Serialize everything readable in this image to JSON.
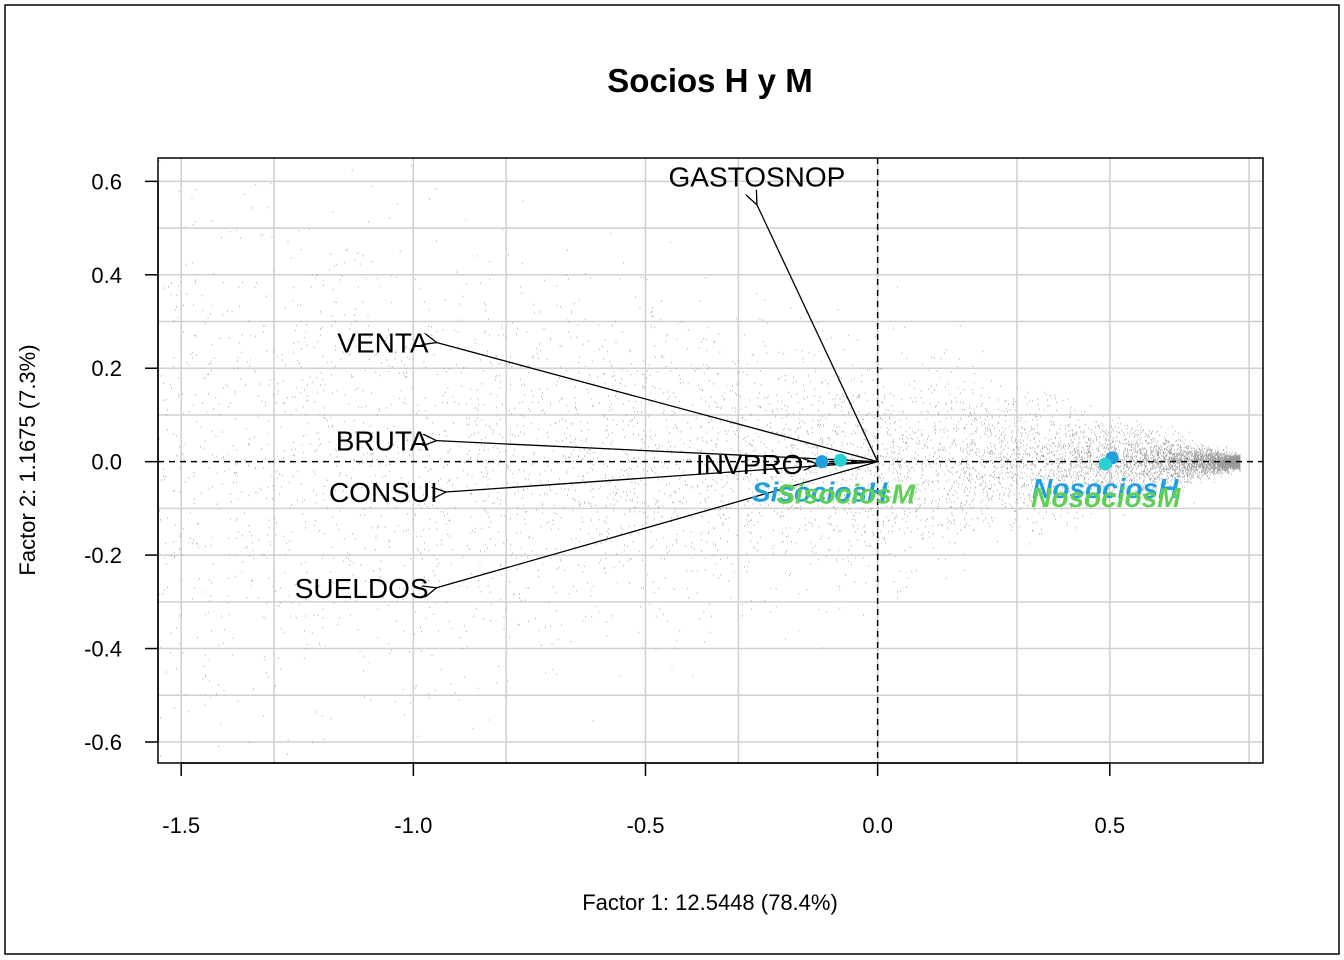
{
  "chart_data": {
    "type": "scatter",
    "title": "Socios H y M",
    "xlabel": "Factor 1: 12.5448 (78.4%)",
    "ylabel": "Factor 2: 1.1675 (7.3%)",
    "xlim": [
      -1.55,
      0.83
    ],
    "ylim": [
      -0.645,
      0.65
    ],
    "grid": true,
    "x_ticks": [
      -1.5,
      -1.0,
      -0.5,
      0.0,
      0.5
    ],
    "x_tick_labels": [
      "-1.5",
      "-1.0",
      "-0.5",
      "0.0",
      "0.5"
    ],
    "y_ticks": [
      -0.6,
      -0.4,
      -0.2,
      0.0,
      0.2,
      0.4,
      0.6
    ],
    "y_tick_labels": [
      "-0.6",
      "-0.4",
      "-0.2",
      "0.0",
      "0.2",
      "0.4",
      "0.6"
    ],
    "reference_lines": {
      "x": 0.0,
      "y": 0.0,
      "style": "dashed"
    },
    "variables": [
      {
        "label": "GASTOSNOP",
        "x": -0.26,
        "y": 0.55
      },
      {
        "label": "VENTA",
        "x": -0.95,
        "y": 0.255
      },
      {
        "label": "BRUTA",
        "x": -0.95,
        "y": 0.045
      },
      {
        "label": "INVPRO",
        "x": -0.13,
        "y": -0.005
      },
      {
        "label": "CONSUI",
        "x": -0.93,
        "y": -0.065
      },
      {
        "label": "SUELDOS",
        "x": -0.95,
        "y": -0.27
      }
    ],
    "groups": [
      {
        "label": "SisociosH",
        "x": -0.12,
        "y": 0.0,
        "color": "#1f9fe0"
      },
      {
        "label": "SisociosM",
        "x": -0.08,
        "y": 0.003,
        "color": "#2ad0d8"
      },
      {
        "label": "NosociosH",
        "x": 0.505,
        "y": 0.008,
        "color": "#1f9fe0"
      },
      {
        "label": "NosociosM",
        "x": 0.49,
        "y": -0.005,
        "color": "#2ad0d8"
      }
    ],
    "group_label_colors": {
      "shadow": "#5fcf55"
    },
    "individuals_color": "#999999",
    "arrow_color": "#000000"
  }
}
